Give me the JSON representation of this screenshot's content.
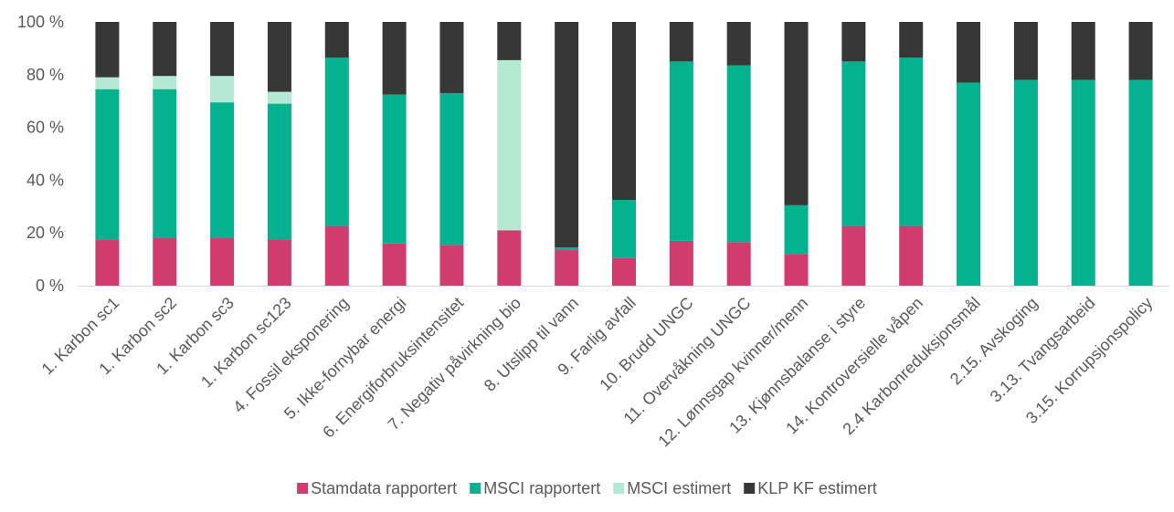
{
  "chart_data": {
    "type": "bar",
    "stacked": true,
    "percent_stacked": true,
    "categories": [
      "1. Karbon sc1",
      "1. Karbon sc2",
      "1. Karbon sc3",
      "1. Karbon sc123",
      "4. Fossil eksponering",
      "5. Ikke-fornybar energi",
      "6. Energiforbruksintensitet",
      "7. Negativ påvirkning bio",
      "8. Utslipp til vann",
      "9. Farlig avfall",
      "10. Brudd UNGC",
      "11. Overvåkning UNGC",
      "12. Lønnsgap kvinner/menn",
      "13. Kjønnsbalanse i styre",
      "14. Kontroversielle våpen",
      "2.4 Karbonreduksjonsmål",
      "2.15. Avskoging",
      "3.13. Tvangsarbeid",
      "3.15. Korrupsjonspolicy"
    ],
    "series": [
      {
        "name": "Stamdata rapportert",
        "color": "#d03c6e",
        "values": [
          17.5,
          18,
          18,
          17.5,
          22.5,
          16,
          15.5,
          21,
          13.5,
          10.5,
          17,
          16.5,
          12,
          22.5,
          22.5,
          0,
          0,
          0,
          0
        ]
      },
      {
        "name": "MSCI rapportert",
        "color": "#05b28f",
        "values": [
          57,
          56.5,
          51.5,
          51.5,
          64,
          56.5,
          57.5,
          0,
          1,
          22,
          68,
          67,
          18.5,
          62.5,
          64,
          77,
          78,
          78,
          78
        ]
      },
      {
        "name": "MSCI estimert",
        "color": "#b4ead3",
        "values": [
          4.5,
          5,
          10,
          4.5,
          0,
          0,
          0,
          64.5,
          0,
          0,
          0,
          0,
          0,
          0,
          0,
          0,
          0,
          0,
          0
        ]
      },
      {
        "name": "KLP KF estimert",
        "color": "#373737",
        "values": [
          21,
          20.5,
          20.5,
          26.5,
          13.5,
          27.5,
          27,
          14.5,
          85.5,
          67.5,
          15,
          16.5,
          69.5,
          15,
          13.5,
          23,
          22,
          22,
          22
        ]
      }
    ],
    "ylim": [
      0,
      100
    ],
    "yticks": [
      0,
      20,
      40,
      60,
      80,
      100
    ],
    "ytick_labels": [
      "0 %",
      "20 %",
      "40 %",
      "60 %",
      "80 %",
      "100 %"
    ],
    "legend_position": "bottom-center",
    "grid": false
  }
}
